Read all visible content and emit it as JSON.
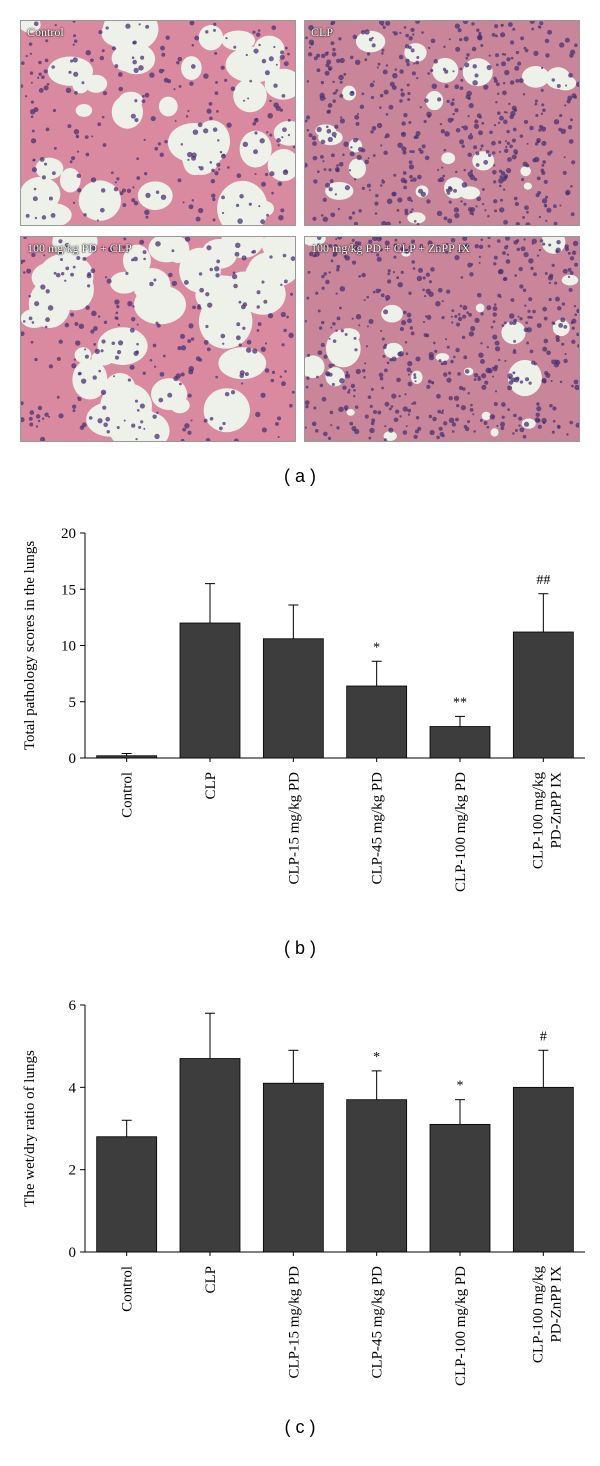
{
  "panels": [
    {
      "label": "Control",
      "tone": "normal"
    },
    {
      "label": "CLP",
      "tone": "dense"
    },
    {
      "label": "100 mg/kg PD + CLP",
      "tone": "normal"
    },
    {
      "label": "100 mg/kg PD + CLP + ZnPP IX",
      "tone": "dense"
    }
  ],
  "figure_labels": {
    "a": "( a )",
    "b": "( b )",
    "c": "( c )"
  },
  "colors": {
    "bar": "#3d3d3d",
    "tissue": "#d98aa0",
    "nuclei": "#4a3270",
    "lumen": "#eef0ea"
  },
  "chart_data": [
    {
      "type": "bar",
      "ylabel": "Total pathology scores in the lungs",
      "categories": [
        [
          "Control"
        ],
        [
          "CLP"
        ],
        [
          "CLP-15 mg/kg PD"
        ],
        [
          "CLP-45 mg/kg PD"
        ],
        [
          "CLP-100 mg/kg PD"
        ],
        [
          "CLP-100 mg/kg",
          "PD-ZnPP IX"
        ]
      ],
      "values": [
        0.2,
        12.0,
        10.6,
        6.4,
        2.8,
        11.2
      ],
      "errors": [
        0.2,
        3.5,
        3.0,
        2.2,
        0.9,
        3.4
      ],
      "significance": [
        "",
        "",
        "",
        "*",
        "**",
        "##"
      ],
      "ylim": [
        0,
        20
      ],
      "yticks": [
        0,
        5,
        10,
        15,
        20
      ]
    },
    {
      "type": "bar",
      "ylabel": "The wet/dry ratio of lungs",
      "categories": [
        [
          "Control"
        ],
        [
          "CLP"
        ],
        [
          "CLP-15 mg/kg PD"
        ],
        [
          "CLP-45 mg/kg PD"
        ],
        [
          "CLP-100 mg/kg PD"
        ],
        [
          "CLP-100 mg/kg",
          "PD-ZnPP IX"
        ]
      ],
      "values": [
        2.8,
        4.7,
        4.1,
        3.7,
        3.1,
        4.0
      ],
      "errors": [
        0.4,
        1.1,
        0.8,
        0.7,
        0.6,
        0.9
      ],
      "significance": [
        "",
        "",
        "",
        "*",
        "*",
        "#"
      ],
      "ylim": [
        0,
        6
      ],
      "yticks": [
        0,
        2,
        4,
        6
      ]
    }
  ]
}
